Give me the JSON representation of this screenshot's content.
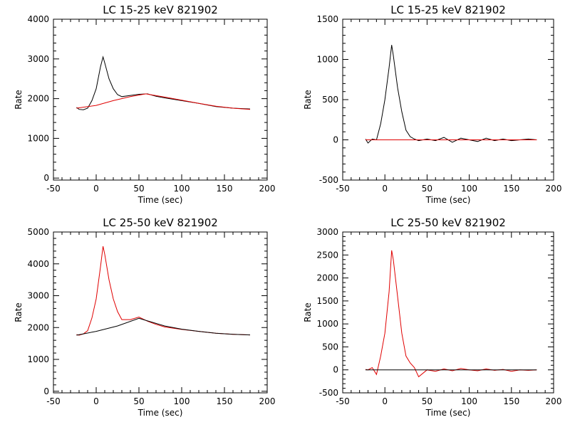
{
  "chart_data": [
    {
      "type": "line",
      "title": "LC 15-25 keV  821902",
      "xlabel": "Time (sec)",
      "ylabel": "Rate",
      "xlim": [
        -50,
        200
      ],
      "ylim": [
        -50,
        4000
      ],
      "xticks": [
        -50,
        0,
        50,
        100,
        150,
        200
      ],
      "yticks": [
        0,
        1000,
        2000,
        3000,
        4000
      ],
      "series": [
        {
          "color": "#000000",
          "x": [
            -23,
            -20,
            -15,
            -10,
            -5,
            0,
            5,
            8,
            10,
            15,
            20,
            25,
            30,
            40,
            50,
            60,
            70,
            80,
            100,
            120,
            140,
            160,
            180
          ],
          "y": [
            1780,
            1730,
            1720,
            1760,
            1950,
            2250,
            2800,
            3050,
            2900,
            2500,
            2250,
            2100,
            2050,
            2080,
            2110,
            2120,
            2060,
            2020,
            1950,
            1880,
            1800,
            1760,
            1740
          ]
        },
        {
          "color": "#e00000",
          "x": [
            -23,
            0,
            20,
            40,
            58,
            80,
            100,
            120,
            140,
            160,
            180
          ],
          "y": [
            1760,
            1830,
            1950,
            2050,
            2120,
            2040,
            1960,
            1880,
            1810,
            1760,
            1730
          ]
        }
      ]
    },
    {
      "type": "line",
      "title": "LC 15-25 keV  821902",
      "xlabel": "Time (sec)",
      "ylabel": "Rate",
      "xlim": [
        -50,
        200
      ],
      "ylim": [
        -500,
        1500
      ],
      "xticks": [
        -50,
        0,
        50,
        100,
        150,
        200
      ],
      "yticks": [
        -500,
        0,
        500,
        1000,
        1500
      ],
      "series": [
        {
          "color": "#000000",
          "x": [
            -23,
            -20,
            -15,
            -10,
            -5,
            0,
            5,
            8,
            10,
            15,
            20,
            25,
            30,
            35,
            40,
            50,
            60,
            70,
            80,
            90,
            100,
            110,
            120,
            130,
            140,
            150,
            160,
            170,
            180
          ],
          "y": [
            10,
            -40,
            10,
            0,
            200,
            500,
            900,
            1180,
            1050,
            650,
            350,
            120,
            40,
            10,
            -10,
            10,
            -10,
            30,
            -30,
            20,
            0,
            -20,
            20,
            -10,
            10,
            -10,
            0,
            10,
            0
          ]
        },
        {
          "color": "#e00000",
          "x": [
            -23,
            180
          ],
          "y": [
            0,
            0
          ]
        }
      ]
    },
    {
      "type": "line",
      "title": "LC 25-50 keV  821902",
      "xlabel": "Time (sec)",
      "ylabel": "Rate",
      "xlim": [
        -50,
        200
      ],
      "ylim": [
        -50,
        5000
      ],
      "xticks": [
        -50,
        0,
        50,
        100,
        150,
        200
      ],
      "yticks": [
        0,
        1000,
        2000,
        3000,
        4000,
        5000
      ],
      "series": [
        {
          "color": "#e00000",
          "x": [
            -23,
            -20,
            -15,
            -10,
            -5,
            0,
            5,
            8,
            10,
            15,
            20,
            25,
            30,
            40,
            50,
            60,
            70,
            80,
            100,
            120,
            140,
            160,
            180
          ],
          "y": [
            1780,
            1760,
            1800,
            1900,
            2300,
            2900,
            3900,
            4550,
            4300,
            3500,
            2900,
            2500,
            2250,
            2250,
            2330,
            2200,
            2100,
            2020,
            1940,
            1880,
            1820,
            1790,
            1770
          ]
        },
        {
          "color": "#000000",
          "x": [
            -23,
            0,
            25,
            50,
            80,
            100,
            120,
            140,
            160,
            180
          ],
          "y": [
            1760,
            1880,
            2050,
            2290,
            2050,
            1950,
            1880,
            1820,
            1790,
            1770
          ]
        }
      ]
    },
    {
      "type": "line",
      "title": "LC 25-50 keV  821902",
      "xlabel": "Time (sec)",
      "ylabel": "Rate",
      "xlim": [
        -50,
        200
      ],
      "ylim": [
        -500,
        3000
      ],
      "xticks": [
        -50,
        0,
        50,
        100,
        150,
        200
      ],
      "yticks": [
        -500,
        0,
        500,
        1000,
        1500,
        2000,
        2500,
        3000
      ],
      "series": [
        {
          "color": "#e00000",
          "x": [
            -23,
            -20,
            -15,
            -10,
            -5,
            0,
            5,
            8,
            10,
            15,
            20,
            25,
            30,
            35,
            40,
            50,
            60,
            70,
            80,
            90,
            100,
            110,
            120,
            130,
            140,
            150,
            160,
            170,
            180
          ],
          "y": [
            10,
            0,
            50,
            -100,
            300,
            800,
            1700,
            2600,
            2400,
            1600,
            800,
            300,
            150,
            50,
            -150,
            0,
            -30,
            20,
            -20,
            30,
            0,
            -20,
            20,
            -10,
            10,
            -30,
            0,
            -10,
            0
          ]
        },
        {
          "color": "#000000",
          "x": [
            -23,
            180
          ],
          "y": [
            0,
            0
          ]
        }
      ]
    }
  ]
}
